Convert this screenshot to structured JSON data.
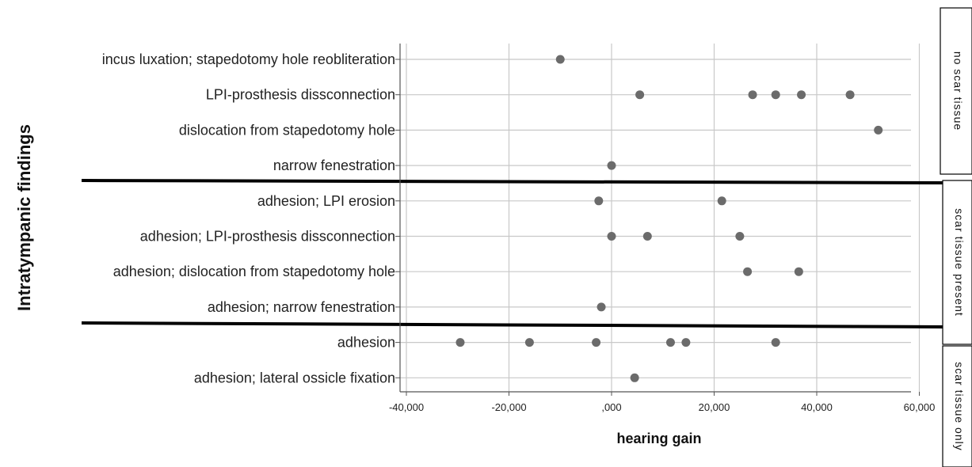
{
  "chart_data": {
    "type": "scatter",
    "xlabel": "hearing gain",
    "ylabel": "Intratympanic findings",
    "xlim": [
      -45000,
      65000
    ],
    "x_ticks": [
      -40000,
      -20000,
      0,
      20000,
      40000,
      60000
    ],
    "x_tick_labels": [
      "-40,000",
      "-20,000",
      ",000",
      "20,000",
      "40,000",
      "60,000"
    ],
    "grid": true,
    "categories": [
      "incus luxation; stapedotomy hole reobliteration",
      "LPI-prosthesis dissconnection",
      "dislocation from stapedotomy hole",
      "narrow fenestration",
      "adhesion; LPI erosion",
      "adhesion; LPI-prosthesis dissconnection",
      "adhesion; dislocation from stapedotomy hole",
      "adhesion; narrow fenestration",
      "adhesion",
      "adhesion; lateral ossicle  fixation"
    ],
    "points": [
      {
        "category": 0,
        "x": -10000
      },
      {
        "category": 1,
        "x": 5500
      },
      {
        "category": 1,
        "x": 27500
      },
      {
        "category": 1,
        "x": 32000
      },
      {
        "category": 1,
        "x": 37000
      },
      {
        "category": 1,
        "x": 46500
      },
      {
        "category": 2,
        "x": 52000
      },
      {
        "category": 3,
        "x": 0
      },
      {
        "category": 4,
        "x": -2500
      },
      {
        "category": 4,
        "x": 21500
      },
      {
        "category": 5,
        "x": 0
      },
      {
        "category": 5,
        "x": 7000
      },
      {
        "category": 5,
        "x": 25000
      },
      {
        "category": 6,
        "x": 26500
      },
      {
        "category": 6,
        "x": 36500
      },
      {
        "category": 7,
        "x": -2000
      },
      {
        "category": 8,
        "x": -29500
      },
      {
        "category": 8,
        "x": -16000
      },
      {
        "category": 8,
        "x": -3000
      },
      {
        "category": 8,
        "x": 11500
      },
      {
        "category": 8,
        "x": 14500
      },
      {
        "category": 8,
        "x": 32000
      },
      {
        "category": 9,
        "x": 4500
      }
    ],
    "groups": [
      {
        "label": "no scar tissue",
        "categories": [
          0,
          3
        ]
      },
      {
        "label": "scar tissue present",
        "categories": [
          4,
          7
        ]
      },
      {
        "label": "scar tissue only",
        "categories": [
          8,
          9
        ]
      }
    ],
    "marker_color": "#6b6b6b"
  }
}
